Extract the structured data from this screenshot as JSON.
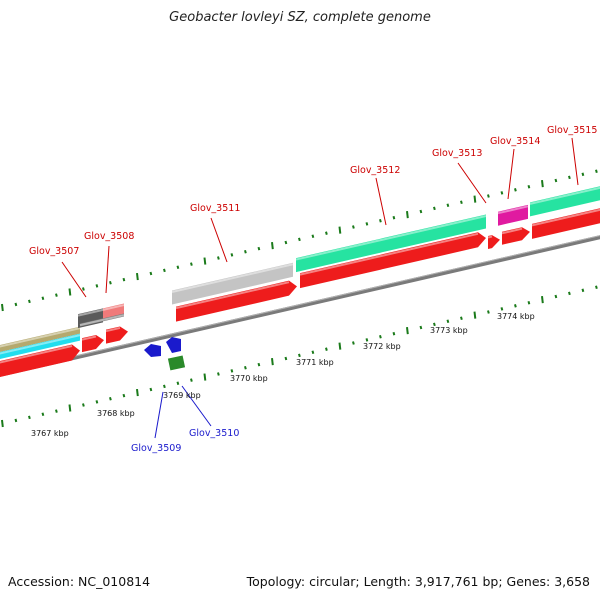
{
  "title": "Geobacter lovleyi SZ, complete genome",
  "footer": {
    "accession": "Accession: NC_010814",
    "summary": "Topology: circular; Length: 3,917,761 bp; Genes: 3,658"
  },
  "colors": {
    "cds_forward": "#ee1c1c",
    "cds_reverse": "#1a1acc",
    "rna": "#2a8a2a",
    "label_red": "#cc0000",
    "label_blue": "#1a1acc",
    "backbone": "#808080",
    "ticks": "#1a7a1a"
  },
  "genes": [
    {
      "name": "Glov_3507",
      "color": "#cc0000"
    },
    {
      "name": "Glov_3508",
      "color": "#cc0000"
    },
    {
      "name": "Glov_3509",
      "color": "#1a1acc"
    },
    {
      "name": "Glov_3510",
      "color": "#1a1acc"
    },
    {
      "name": "Glov_3511",
      "color": "#cc0000"
    },
    {
      "name": "Glov_3512",
      "color": "#cc0000"
    },
    {
      "name": "Glov_3513",
      "color": "#cc0000"
    },
    {
      "name": "Glov_3514",
      "color": "#cc0000"
    },
    {
      "name": "Glov_3515",
      "color": "#cc0000"
    }
  ],
  "scale_labels": [
    "3767 kbp",
    "3768 kbp",
    "3769 kbp",
    "3770 kbp",
    "3771 kbp",
    "3772 kbp",
    "3773 kbp",
    "3774 kbp"
  ]
}
